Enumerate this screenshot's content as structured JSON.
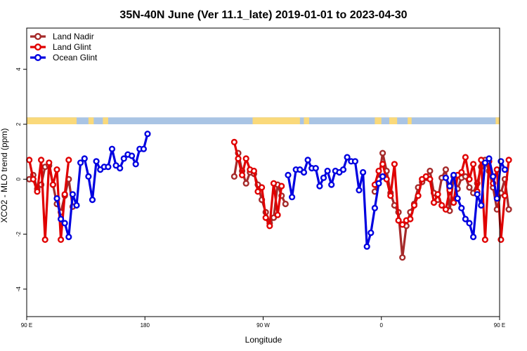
{
  "chart_data": {
    "type": "line",
    "title": "35N-40N June (Ver 11.1_late)   2019-01-01 to 2023-04-30",
    "xlabel": "Longitude",
    "ylabel": "XCO2 - MLO trend (ppm)",
    "xlim": [
      90,
      450
    ],
    "ylim": [
      -5,
      5.5
    ],
    "x_ticks": [
      {
        "value": 90,
        "label": "90 E"
      },
      {
        "value": 180,
        "label": "180"
      },
      {
        "value": 270,
        "label": "90 W"
      },
      {
        "value": 360,
        "label": "0"
      },
      {
        "value": 450,
        "label": "90 E"
      },
      {
        "value": 540,
        "label": "180"
      }
    ],
    "y_ticks": [
      {
        "value": -4,
        "label": "-4"
      },
      {
        "value": -2,
        "label": "-2"
      },
      {
        "value": 0,
        "label": "0"
      },
      {
        "value": 2,
        "label": "2"
      },
      {
        "value": 4,
        "label": "4"
      }
    ],
    "legend": {
      "placement": "top-left"
    },
    "land_ocean_strip": {
      "y_range": [
        2.0,
        2.25
      ],
      "land_color": "#FAD97A",
      "ocean_color": "#A9C4E4",
      "land_spans": [
        [
          90,
          128
        ],
        [
          137,
          141
        ],
        [
          148,
          152
        ],
        [
          262,
          298
        ],
        [
          301,
          305
        ],
        [
          355,
          360
        ],
        [
          366,
          372
        ],
        [
          380,
          383
        ],
        [
          447,
          488
        ],
        [
          497,
          499
        ],
        [
          509,
          516
        ]
      ]
    },
    "series": [
      {
        "name": "Land Nadir",
        "color": "#A52A2A",
        "segments": [
          [
            [
              92,
              0.0
            ],
            [
              95,
              0.15
            ],
            [
              98,
              -0.35
            ],
            [
              101,
              -0.2
            ],
            [
              104,
              0.45
            ],
            [
              107,
              0.5
            ],
            [
              110,
              -0.2
            ],
            [
              113,
              -0.9
            ],
            [
              116,
              -1.2
            ],
            [
              119,
              -0.6
            ],
            [
              122,
              0.0
            ],
            [
              125,
              -1.0
            ]
          ],
          [
            [
              248,
              0.1
            ],
            [
              251,
              0.95
            ],
            [
              254,
              0.3
            ],
            [
              257,
              -0.15
            ],
            [
              260,
              0.25
            ],
            [
              263,
              0.2
            ],
            [
              266,
              -0.2
            ],
            [
              269,
              -0.75
            ],
            [
              272,
              -1.2
            ],
            [
              275,
              -1.6
            ],
            [
              278,
              -1.4
            ],
            [
              281,
              -0.2
            ],
            [
              284,
              -0.6
            ],
            [
              287,
              -0.9
            ]
          ],
          [
            [
              355,
              -0.45
            ],
            [
              358,
              0.0
            ],
            [
              361,
              0.95
            ],
            [
              364,
              0.3
            ],
            [
              367,
              -0.5
            ],
            [
              370,
              -0.95
            ],
            [
              373,
              -1.2
            ],
            [
              376,
              -2.85
            ],
            [
              379,
              -1.7
            ],
            [
              382,
              -1.2
            ],
            [
              385,
              -0.9
            ],
            [
              388,
              -0.3
            ],
            [
              391,
              -0.1
            ],
            [
              394,
              0.05
            ],
            [
              397,
              0.3
            ],
            [
              400,
              -0.5
            ],
            [
              403,
              -0.75
            ],
            [
              406,
              0.05
            ],
            [
              409,
              0.35
            ],
            [
              412,
              -1.15
            ],
            [
              415,
              0.1
            ],
            [
              418,
              -0.35
            ],
            [
              421,
              0.05
            ],
            [
              424,
              0.1
            ],
            [
              427,
              -0.3
            ],
            [
              430,
              -0.5
            ],
            [
              433,
              -0.15
            ],
            [
              436,
              0.45
            ],
            [
              439,
              0.7
            ],
            [
              442,
              0.3
            ],
            [
              445,
              -0.3
            ],
            [
              448,
              -1.1
            ],
            [
              451,
              -0.5
            ],
            [
              454,
              0.0
            ],
            [
              457,
              -1.1
            ]
          ]
        ]
      },
      {
        "name": "Land Glint",
        "color": "#E00000",
        "segments": [
          [
            [
              92,
              0.7
            ],
            [
              95,
              0.0
            ],
            [
              98,
              -0.45
            ],
            [
              101,
              0.7
            ],
            [
              104,
              -2.2
            ],
            [
              107,
              0.6
            ],
            [
              110,
              -0.2
            ],
            [
              113,
              0.35
            ],
            [
              116,
              -2.2
            ],
            [
              119,
              -0.55
            ],
            [
              122,
              0.7
            ]
          ],
          [
            [
              248,
              1.35
            ],
            [
              251,
              0.75
            ],
            [
              254,
              0.15
            ],
            [
              257,
              0.75
            ],
            [
              260,
              0.35
            ],
            [
              263,
              0.3
            ],
            [
              266,
              -0.45
            ],
            [
              269,
              -0.3
            ],
            [
              272,
              -1.4
            ],
            [
              275,
              -1.7
            ],
            [
              278,
              -0.15
            ],
            [
              281,
              -1.3
            ],
            [
              284,
              -0.25
            ]
          ],
          [
            [
              355,
              -0.2
            ],
            [
              358,
              0.3
            ],
            [
              361,
              0.55
            ],
            [
              364,
              0.0
            ],
            [
              367,
              -0.6
            ],
            [
              370,
              0.55
            ],
            [
              373,
              -1.5
            ],
            [
              376,
              -1.65
            ],
            [
              379,
              -1.5
            ],
            [
              382,
              -1.45
            ],
            [
              385,
              -0.95
            ],
            [
              388,
              -0.6
            ],
            [
              391,
              0.0
            ],
            [
              394,
              0.1
            ],
            [
              397,
              0.0
            ],
            [
              400,
              -0.85
            ],
            [
              403,
              -0.55
            ],
            [
              406,
              -0.95
            ],
            [
              409,
              -1.1
            ],
            [
              412,
              -0.4
            ],
            [
              415,
              -0.85
            ],
            [
              418,
              0.15
            ],
            [
              421,
              0.25
            ],
            [
              424,
              0.8
            ],
            [
              427,
              0.0
            ],
            [
              430,
              0.55
            ],
            [
              433,
              -0.45
            ],
            [
              436,
              0.7
            ],
            [
              439,
              -2.2
            ],
            [
              442,
              0.65
            ],
            [
              445,
              -0.15
            ],
            [
              448,
              0.35
            ],
            [
              451,
              -2.2
            ],
            [
              454,
              -0.6
            ],
            [
              457,
              0.7
            ]
          ]
        ]
      },
      {
        "name": "Ocean Glint",
        "color": "#0000E0",
        "segments": [
          [
            [
              113,
              -0.7
            ],
            [
              116,
              -1.45
            ],
            [
              119,
              -1.6
            ],
            [
              122,
              -2.1
            ],
            [
              125,
              -0.55
            ],
            [
              128,
              -0.95
            ],
            [
              131,
              0.6
            ],
            [
              134,
              0.75
            ],
            [
              137,
              0.1
            ],
            [
              140,
              -0.75
            ],
            [
              143,
              0.65
            ],
            [
              146,
              0.35
            ],
            [
              149,
              0.45
            ],
            [
              152,
              0.45
            ],
            [
              155,
              1.1
            ],
            [
              158,
              0.5
            ],
            [
              161,
              0.4
            ],
            [
              164,
              0.75
            ],
            [
              167,
              0.9
            ],
            [
              170,
              0.85
            ],
            [
              173,
              0.55
            ],
            [
              176,
              1.1
            ],
            [
              179,
              1.1
            ],
            [
              182,
              1.65
            ]
          ],
          [
            [
              289,
              0.15
            ],
            [
              292,
              -0.65
            ],
            [
              295,
              0.35
            ],
            [
              298,
              0.35
            ],
            [
              301,
              0.25
            ],
            [
              304,
              0.7
            ],
            [
              307,
              0.4
            ],
            [
              310,
              0.4
            ],
            [
              313,
              -0.25
            ],
            [
              316,
              0.05
            ],
            [
              319,
              0.3
            ],
            [
              322,
              -0.2
            ],
            [
              325,
              0.3
            ],
            [
              328,
              0.25
            ],
            [
              331,
              0.35
            ],
            [
              334,
              0.8
            ],
            [
              337,
              0.65
            ],
            [
              340,
              0.65
            ],
            [
              343,
              -0.4
            ],
            [
              346,
              0.25
            ],
            [
              349,
              -2.45
            ],
            [
              352,
              -1.95
            ],
            [
              355,
              -1.05
            ],
            [
              358,
              -0.15
            ],
            [
              361,
              0.1
            ]
          ],
          [
            [
              409,
              0.05
            ],
            [
              412,
              -0.25
            ],
            [
              415,
              0.15
            ],
            [
              418,
              -0.7
            ],
            [
              421,
              -1.05
            ],
            [
              424,
              -1.45
            ],
            [
              427,
              -1.6
            ],
            [
              430,
              -2.1
            ],
            [
              433,
              -0.55
            ],
            [
              436,
              -0.95
            ],
            [
              439,
              0.6
            ],
            [
              442,
              0.75
            ],
            [
              445,
              0.1
            ],
            [
              448,
              -0.7
            ],
            [
              451,
              0.65
            ],
            [
              454,
              0.35
            ]
          ]
        ]
      }
    ]
  }
}
